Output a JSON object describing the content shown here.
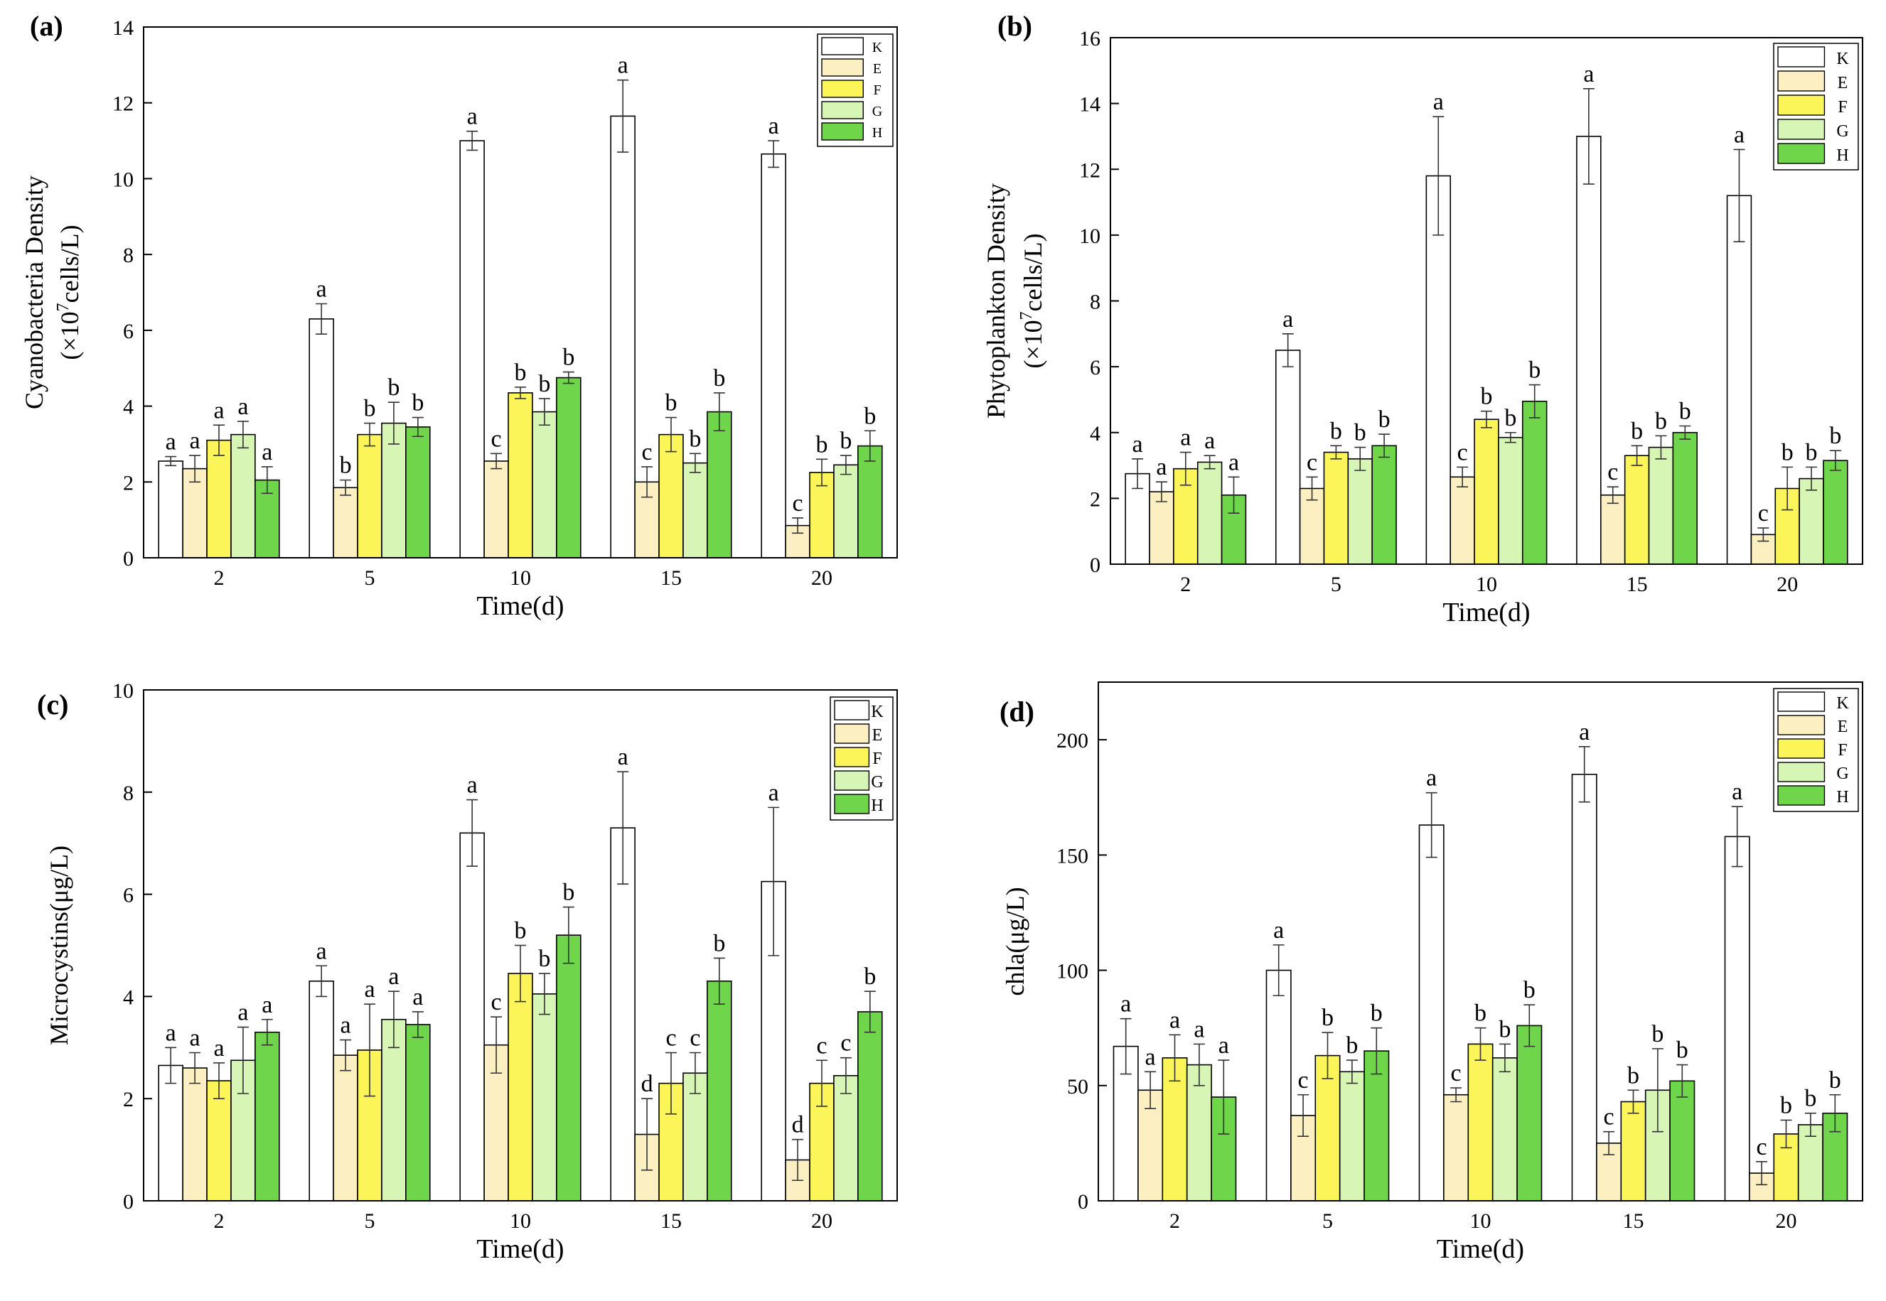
{
  "figure": {
    "domain": "Chart",
    "panel_count": 4
  },
  "legend_colors": {
    "K": "#ffffff",
    "E": "#fcefc2",
    "F": "#fcf55a",
    "G": "#d7f5b4",
    "H": "#6fd64b"
  },
  "chart_data": [
    {
      "type": "bar",
      "panel_label": "(a)",
      "title": "",
      "xlabel": "Time(d)",
      "ylabel_line1": "Cyanobacteria Density",
      "ylabel_line2_prefix": "(×10",
      "ylabel_line2_sup": "7",
      "ylabel_line2_suffix": "cells/L)",
      "categories": [
        "2",
        "5",
        "10",
        "15",
        "20"
      ],
      "ylim": [
        0,
        14
      ],
      "yticks": [
        0,
        2,
        4,
        6,
        8,
        10,
        12,
        14
      ],
      "ytick_labels": [
        "0",
        "2",
        "4",
        "6",
        "8",
        "10",
        "12",
        "14"
      ],
      "legend_position": "top-right",
      "series": [
        {
          "name": "K",
          "values": [
            2.55,
            6.3,
            11.0,
            11.65,
            10.65
          ],
          "errors": [
            0.12,
            0.4,
            0.25,
            0.95,
            0.35
          ],
          "letters": [
            "a",
            "a",
            "a",
            "a",
            "a"
          ]
        },
        {
          "name": "E",
          "values": [
            2.35,
            1.85,
            2.55,
            2.0,
            0.85
          ],
          "errors": [
            0.35,
            0.2,
            0.2,
            0.4,
            0.2
          ],
          "letters": [
            "a",
            "b",
            "c",
            "c",
            "c"
          ]
        },
        {
          "name": "F",
          "values": [
            3.1,
            3.25,
            4.35,
            3.25,
            2.25
          ],
          "errors": [
            0.4,
            0.3,
            0.15,
            0.45,
            0.35
          ],
          "letters": [
            "a",
            "b",
            "b",
            "b",
            "b"
          ]
        },
        {
          "name": "G",
          "values": [
            3.25,
            3.55,
            3.85,
            2.5,
            2.45
          ],
          "errors": [
            0.35,
            0.55,
            0.35,
            0.25,
            0.25
          ],
          "letters": [
            "a",
            "b",
            "b",
            "b",
            "b"
          ]
        },
        {
          "name": "H",
          "values": [
            2.05,
            3.45,
            4.75,
            3.85,
            2.95
          ],
          "errors": [
            0.35,
            0.25,
            0.15,
            0.5,
            0.4
          ],
          "letters": [
            "a",
            "b",
            "b",
            "b",
            "b"
          ]
        }
      ]
    },
    {
      "type": "bar",
      "panel_label": "(b)",
      "title": "",
      "xlabel": "Time(d)",
      "ylabel_line1": "Phytoplankton Density",
      "ylabel_line2_prefix": "(×10",
      "ylabel_line2_sup": "7",
      "ylabel_line2_suffix": "cells/L)",
      "categories": [
        "2",
        "5",
        "10",
        "15",
        "20"
      ],
      "ylim": [
        0,
        16
      ],
      "yticks": [
        0,
        2,
        4,
        6,
        8,
        10,
        12,
        14,
        16
      ],
      "ytick_labels": [
        "0",
        "2",
        "4",
        "6",
        "8",
        "10",
        "12",
        "14",
        "16"
      ],
      "legend_position": "top-right",
      "series": [
        {
          "name": "K",
          "values": [
            2.75,
            6.5,
            11.8,
            13.0,
            11.2
          ],
          "errors": [
            0.45,
            0.5,
            1.8,
            1.45,
            1.4
          ],
          "letters": [
            "a",
            "a",
            "a",
            "a",
            "a"
          ]
        },
        {
          "name": "E",
          "values": [
            2.2,
            2.3,
            2.65,
            2.1,
            0.9
          ],
          "errors": [
            0.3,
            0.35,
            0.3,
            0.25,
            0.2
          ],
          "letters": [
            "a",
            "c",
            "c",
            "c",
            "c"
          ]
        },
        {
          "name": "F",
          "values": [
            2.9,
            3.4,
            4.4,
            3.3,
            2.3
          ],
          "errors": [
            0.5,
            0.2,
            0.25,
            0.3,
            0.65
          ],
          "letters": [
            "a",
            "b",
            "b",
            "b",
            "b"
          ]
        },
        {
          "name": "G",
          "values": [
            3.1,
            3.2,
            3.85,
            3.55,
            2.6
          ],
          "errors": [
            0.2,
            0.35,
            0.15,
            0.35,
            0.35
          ],
          "letters": [
            "a",
            "b",
            "b",
            "b",
            "b"
          ]
        },
        {
          "name": "H",
          "values": [
            2.1,
            3.6,
            4.95,
            4.0,
            3.15
          ],
          "errors": [
            0.55,
            0.35,
            0.5,
            0.2,
            0.3
          ],
          "letters": [
            "a",
            "b",
            "b",
            "b",
            "b"
          ]
        }
      ]
    },
    {
      "type": "bar",
      "panel_label": "(c)",
      "title": "",
      "xlabel": "Time(d)",
      "ylabel_line1": "Microcystins(μg/L)",
      "ylabel_line2_prefix": "",
      "ylabel_line2_sup": "",
      "ylabel_line2_suffix": "",
      "categories": [
        "2",
        "5",
        "10",
        "15",
        "20"
      ],
      "ylim": [
        0,
        10
      ],
      "yticks": [
        0,
        2,
        4,
        6,
        8,
        10
      ],
      "ytick_labels": [
        "0",
        "2",
        "4",
        "6",
        "8",
        "10"
      ],
      "legend_position": "top-right",
      "series": [
        {
          "name": "K",
          "values": [
            2.65,
            4.3,
            7.2,
            7.3,
            6.25
          ],
          "errors": [
            0.35,
            0.3,
            0.65,
            1.1,
            1.45
          ],
          "letters": [
            "a",
            "a",
            "a",
            "a",
            "a"
          ]
        },
        {
          "name": "E",
          "values": [
            2.6,
            2.85,
            3.05,
            1.3,
            0.8
          ],
          "errors": [
            0.3,
            0.3,
            0.55,
            0.7,
            0.4
          ],
          "letters": [
            "a",
            "a",
            "c",
            "d",
            "d"
          ]
        },
        {
          "name": "F",
          "values": [
            2.35,
            2.95,
            4.45,
            2.3,
            2.3
          ],
          "errors": [
            0.35,
            0.9,
            0.55,
            0.6,
            0.45
          ],
          "letters": [
            "a",
            "a",
            "b",
            "c",
            "c"
          ]
        },
        {
          "name": "G",
          "values": [
            2.75,
            3.55,
            4.05,
            2.5,
            2.45
          ],
          "errors": [
            0.65,
            0.55,
            0.4,
            0.4,
            0.35
          ],
          "letters": [
            "a",
            "a",
            "b",
            "c",
            "c"
          ]
        },
        {
          "name": "H",
          "values": [
            3.3,
            3.45,
            5.2,
            4.3,
            3.7
          ],
          "errors": [
            0.25,
            0.25,
            0.55,
            0.45,
            0.4
          ],
          "letters": [
            "a",
            "a",
            "b",
            "b",
            "b"
          ]
        }
      ]
    },
    {
      "type": "bar",
      "panel_label": "(d)",
      "title": "",
      "xlabel": "Time(d)",
      "ylabel_line1": "chla(μg/L)",
      "ylabel_line2_prefix": "",
      "ylabel_line2_sup": "",
      "ylabel_line2_suffix": "",
      "categories": [
        "2",
        "5",
        "10",
        "15",
        "20"
      ],
      "ylim": [
        0,
        225
      ],
      "yticks": [
        0,
        50,
        100,
        150,
        200
      ],
      "ytick_labels": [
        "0",
        "50",
        "100",
        "150",
        "200"
      ],
      "legend_position": "top-right",
      "series": [
        {
          "name": "K",
          "values": [
            67,
            100,
            163,
            185,
            158
          ],
          "errors": [
            12,
            11,
            14,
            12,
            13
          ],
          "letters": [
            "a",
            "a",
            "a",
            "a",
            "a"
          ]
        },
        {
          "name": "E",
          "values": [
            48,
            37,
            46,
            25,
            12
          ],
          "errors": [
            8,
            9,
            3,
            5,
            5
          ],
          "letters": [
            "a",
            "c",
            "c",
            "c",
            "c"
          ]
        },
        {
          "name": "F",
          "values": [
            62,
            63,
            68,
            43,
            29
          ],
          "errors": [
            10,
            10,
            7,
            5,
            6
          ],
          "letters": [
            "a",
            "b",
            "b",
            "b",
            "b"
          ]
        },
        {
          "name": "G",
          "values": [
            59,
            56,
            62,
            48,
            33
          ],
          "errors": [
            9,
            5,
            6,
            18,
            5
          ],
          "letters": [
            "a",
            "b",
            "b",
            "b",
            "b"
          ]
        },
        {
          "name": "H",
          "values": [
            45,
            65,
            76,
            52,
            38
          ],
          "errors": [
            16,
            10,
            9,
            7,
            8
          ],
          "letters": [
            "a",
            "b",
            "b",
            "b",
            "b"
          ]
        }
      ]
    }
  ]
}
